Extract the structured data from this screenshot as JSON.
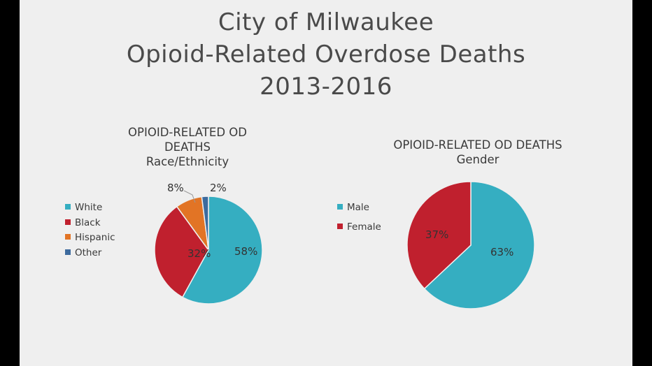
{
  "title": {
    "line1": "City of Milwaukee",
    "line2": "Opioid-Related Overdose Deaths",
    "line3": "2013-2016"
  },
  "chart_data": [
    {
      "type": "pie",
      "title_lines": [
        "OPIOID-RELATED OD",
        "DEATHS",
        "Race/Ethnicity"
      ],
      "categories": [
        "White",
        "Black",
        "Hispanic",
        "Other"
      ],
      "values": [
        58,
        32,
        8,
        2
      ],
      "labels": [
        "58%",
        "32%",
        "8%",
        "2%"
      ],
      "colors": [
        "#35aec1",
        "#c0202e",
        "#e27425",
        "#3d6b9e"
      ],
      "legend_position": "left"
    },
    {
      "type": "pie",
      "title_lines": [
        "OPIOID-RELATED OD DEATHS",
        "Gender"
      ],
      "categories": [
        "Male",
        "Female"
      ],
      "values": [
        63,
        37
      ],
      "labels": [
        "63%",
        "37%"
      ],
      "colors": [
        "#35aec1",
        "#c0202e"
      ],
      "legend_position": "left"
    }
  ]
}
